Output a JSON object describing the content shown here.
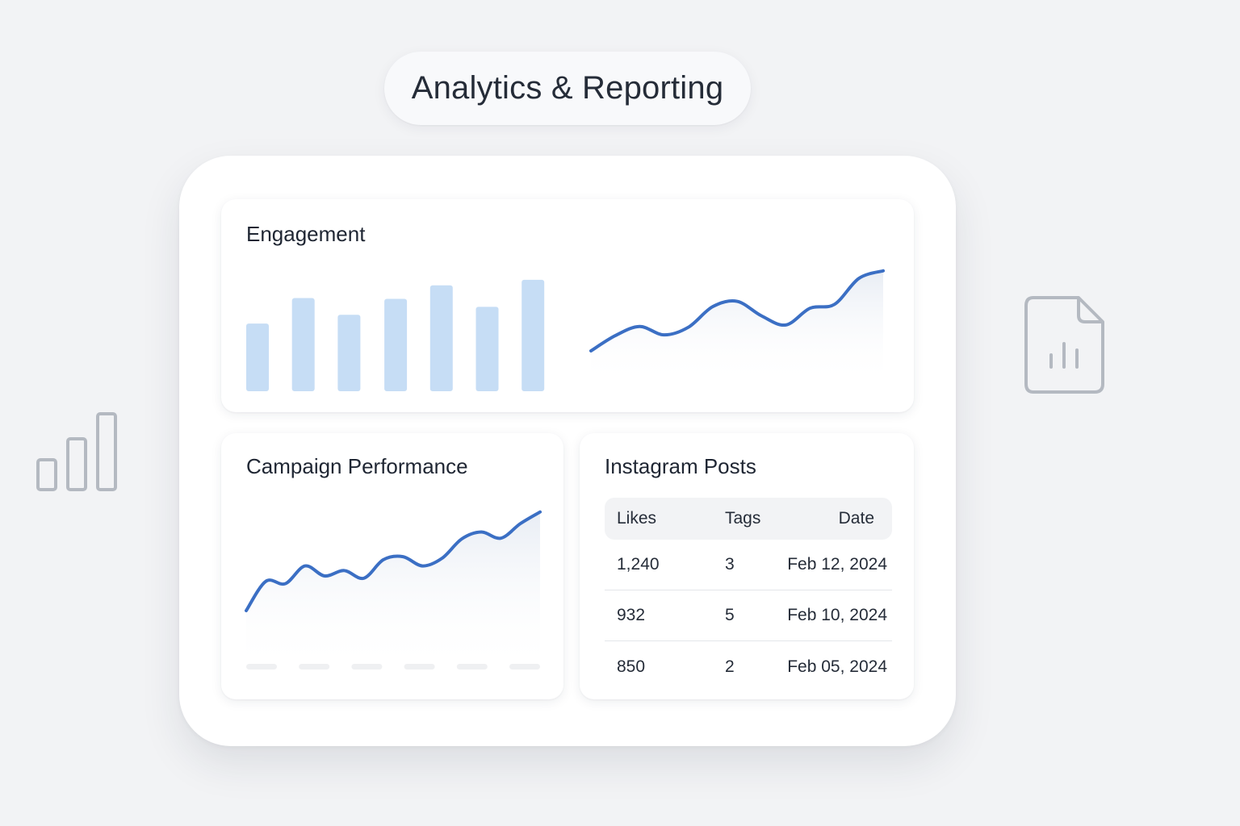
{
  "header": {
    "title": "Analytics & Reporting"
  },
  "engagement": {
    "title": "Engagement",
    "bar_color": "#c6ddf5",
    "line_color": "#3b6fc4"
  },
  "campaign": {
    "title": "Campaign Performance",
    "line_color": "#3b6fc4"
  },
  "instagram": {
    "title": "Instagram Posts",
    "columns": [
      "Likes",
      "Tags",
      "Date"
    ],
    "rows": [
      {
        "likes": "1,240",
        "tags": "3",
        "date": "Feb 12, 2024"
      },
      {
        "likes": "932",
        "tags": "5",
        "date": "Feb 10, 2024"
      },
      {
        "likes": "850",
        "tags": "2",
        "date": "Feb 05, 2024"
      }
    ]
  },
  "icons": {
    "left": "bar-chart-outline-icon",
    "right": "report-document-icon",
    "icon_color": "#b4b9c1"
  },
  "chart_data": [
    {
      "type": "bar",
      "values": [
        85,
        117,
        96,
        116,
        133,
        106,
        140
      ],
      "ylim": [
        0,
        150
      ]
    },
    {
      "type": "line",
      "values": [
        0,
        20,
        32,
        21,
        31,
        58,
        65,
        46,
        34,
        56,
        61,
        95,
        105
      ],
      "ylim": [
        0,
        110
      ]
    },
    {
      "type": "line",
      "values": [
        0,
        38,
        35,
        58,
        45,
        52,
        42,
        66,
        70,
        58,
        68,
        93,
        102,
        94,
        113,
        128
      ],
      "ylim": [
        0,
        135
      ]
    }
  ]
}
